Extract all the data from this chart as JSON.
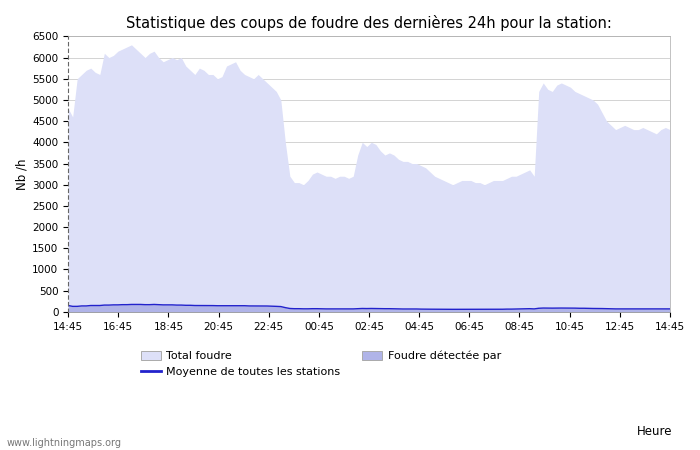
{
  "title": "Statistique des coups de foudre des dernières 24h pour la station:",
  "ylabel": "Nb /h",
  "xlabel": "Heure",
  "watermark": "www.lightningmaps.org",
  "ylim": [
    0,
    6500
  ],
  "yticks": [
    0,
    500,
    1000,
    1500,
    2000,
    2500,
    3000,
    3500,
    4000,
    4500,
    5000,
    5500,
    6000,
    6500
  ],
  "xtick_labels": [
    "14:45",
    "16:45",
    "18:45",
    "20:45",
    "22:45",
    "00:45",
    "02:45",
    "04:45",
    "06:45",
    "08:45",
    "10:45",
    "12:45",
    "14:45"
  ],
  "fill_color_total": "#dde0f8",
  "fill_color_detected": "#b0b4e8",
  "line_color_moyenne": "#2222cc",
  "bg_color": "#ffffff",
  "grid_color": "#cccccc",
  "total_foudre": [
    4800,
    4600,
    5500,
    5600,
    5700,
    5750,
    5650,
    5600,
    6100,
    6000,
    6050,
    6150,
    6200,
    6250,
    6300,
    6200,
    6100,
    6000,
    6100,
    6150,
    6000,
    5900,
    5950,
    6000,
    5950,
    6000,
    5800,
    5700,
    5600,
    5750,
    5700,
    5600,
    5600,
    5500,
    5550,
    5800,
    5850,
    5900,
    5700,
    5600,
    5550,
    5500,
    5600,
    5500,
    5400,
    5300,
    5200,
    5000,
    4000,
    3200,
    3050,
    3050,
    3000,
    3100,
    3250,
    3300,
    3250,
    3200,
    3200,
    3150,
    3200,
    3200,
    3150,
    3200,
    3700,
    4000,
    3900,
    4000,
    3950,
    3800,
    3700,
    3750,
    3700,
    3600,
    3550,
    3550,
    3500,
    3500,
    3450,
    3400,
    3300,
    3200,
    3150,
    3100,
    3050,
    3000,
    3050,
    3100,
    3100,
    3100,
    3050,
    3050,
    3000,
    3050,
    3100,
    3100,
    3100,
    3150,
    3200,
    3200,
    3250,
    3300,
    3350,
    3200,
    5200,
    5400,
    5250,
    5200,
    5350,
    5400,
    5350,
    5300,
    5200,
    5150,
    5100,
    5050,
    5000,
    4900,
    4700,
    4500,
    4400,
    4300,
    4350,
    4400,
    4350,
    4300,
    4300,
    4350,
    4300,
    4250,
    4200,
    4300,
    4350,
    4300
  ],
  "moyenne": [
    150,
    130,
    130,
    140,
    140,
    150,
    150,
    150,
    160,
    160,
    165,
    165,
    170,
    170,
    175,
    175,
    175,
    170,
    170,
    175,
    170,
    165,
    165,
    165,
    160,
    160,
    155,
    155,
    150,
    150,
    150,
    148,
    148,
    145,
    145,
    145,
    145,
    145,
    145,
    145,
    140,
    140,
    140,
    138,
    138,
    135,
    130,
    125,
    100,
    80,
    75,
    75,
    72,
    72,
    75,
    75,
    72,
    70,
    70,
    68,
    68,
    70,
    70,
    70,
    75,
    80,
    78,
    80,
    78,
    75,
    75,
    75,
    72,
    70,
    68,
    68,
    68,
    68,
    65,
    65,
    63,
    62,
    62,
    60,
    60,
    60,
    60,
    62,
    62,
    62,
    60,
    60,
    58,
    60,
    62,
    62,
    62,
    65,
    65,
    68,
    70,
    72,
    75,
    70,
    85,
    90,
    88,
    88,
    90,
    90,
    90,
    88,
    88,
    85,
    85,
    82,
    80,
    80,
    78,
    75,
    72,
    70,
    70,
    72,
    70,
    70,
    70,
    72,
    70,
    68,
    68,
    70,
    72,
    70
  ],
  "detected": [
    150,
    130,
    130,
    140,
    140,
    150,
    150,
    150,
    160,
    160,
    165,
    165,
    170,
    170,
    175,
    175,
    175,
    170,
    170,
    175,
    170,
    165,
    165,
    165,
    160,
    160,
    155,
    155,
    150,
    150,
    150,
    148,
    148,
    145,
    145,
    145,
    145,
    145,
    145,
    145,
    140,
    140,
    140,
    138,
    138,
    135,
    130,
    125,
    100,
    80,
    75,
    75,
    72,
    72,
    75,
    75,
    72,
    70,
    70,
    68,
    68,
    70,
    70,
    70,
    75,
    80,
    78,
    80,
    78,
    75,
    75,
    75,
    72,
    70,
    68,
    68,
    68,
    68,
    65,
    65,
    63,
    62,
    62,
    60,
    60,
    60,
    60,
    62,
    62,
    62,
    60,
    60,
    58,
    60,
    62,
    62,
    62,
    65,
    65,
    68,
    70,
    72,
    75,
    70,
    85,
    90,
    88,
    88,
    90,
    90,
    90,
    88,
    88,
    85,
    85,
    82,
    80,
    80,
    78,
    75,
    72,
    70,
    70,
    72,
    70,
    70,
    70,
    72,
    70,
    68,
    68,
    70,
    72,
    70
  ]
}
